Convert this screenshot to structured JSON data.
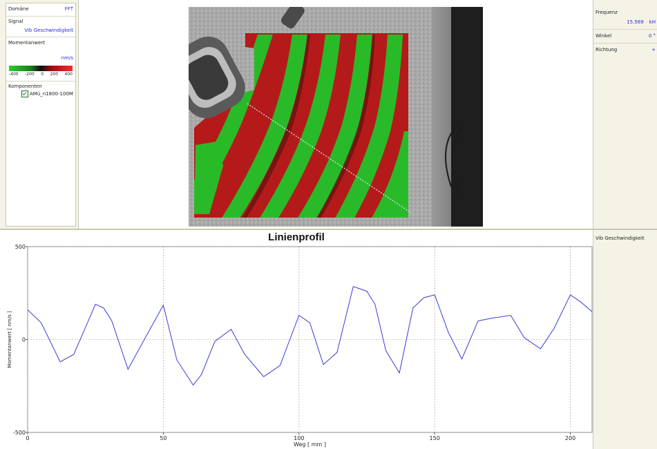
{
  "left_panel": {
    "domain_label": "Domäne",
    "domain_value": "FFT",
    "signal_label": "Signal",
    "signal_value": "Vib Geschwindigkeit",
    "momentanwert_label": "Momentanwert",
    "unit": "nm/s",
    "scale_ticks": [
      "-400",
      "-200",
      "0",
      "200",
      "400"
    ],
    "components_label": "Komponenten",
    "component_item": "AMü_n1800-100M"
  },
  "right_panel": {
    "frequency_label": "Frequenz",
    "frequency_value": "15.569",
    "frequency_unit": "kH",
    "angle_label": "Winkel",
    "angle_value": "0 °",
    "direction_label": "Richtung",
    "direction_value": "+",
    "bottom_label": "Vib Geschwindigkeit"
  },
  "colors": {
    "line": "#3a3ad8",
    "positive": "#ff2b2b",
    "negative": "#2bd02b",
    "accent_value": "#2a2ae0"
  },
  "chart_data": {
    "type": "line",
    "title": "Linienprofil",
    "xlabel": "Weg [ mm ]",
    "ylabel": "Momentanwert [ nm/s ]",
    "xlim": [
      0,
      208
    ],
    "ylim": [
      -500,
      500
    ],
    "xticks": [
      0,
      50,
      100,
      150,
      200
    ],
    "yticks": [
      -500,
      0,
      500
    ],
    "grid": true,
    "series": [
      {
        "x": [
          0,
          5,
          12,
          17,
          25,
          28,
          31,
          37,
          43,
          50,
          55,
          61,
          64,
          69,
          75,
          80,
          87,
          93,
          100,
          104,
          109,
          114,
          120,
          125,
          128,
          132,
          137,
          142,
          146,
          150,
          155,
          160,
          166,
          171,
          178,
          183,
          189,
          194,
          200,
          204,
          208
        ],
        "y": [
          160,
          90,
          -120,
          -80,
          190,
          170,
          100,
          -160,
          0,
          185,
          -110,
          -245,
          -190,
          -10,
          55,
          -80,
          -200,
          -140,
          130,
          90,
          -135,
          -70,
          285,
          260,
          190,
          -60,
          -180,
          170,
          225,
          240,
          40,
          -105,
          100,
          115,
          130,
          10,
          -50,
          60,
          240,
          200,
          150
        ]
      }
    ]
  }
}
